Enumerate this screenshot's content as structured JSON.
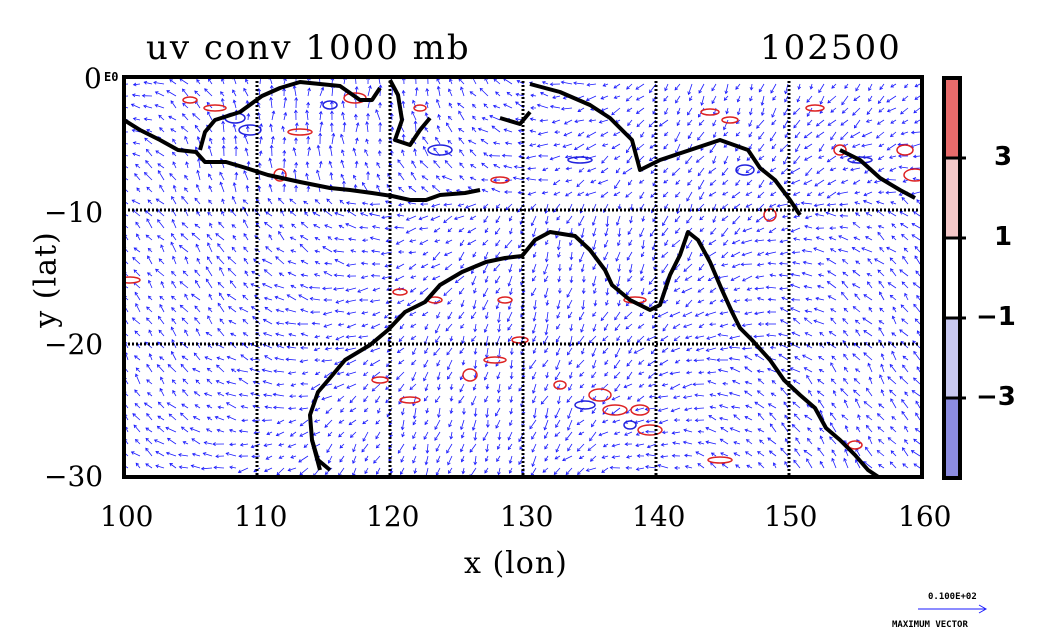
{
  "title": "uv conv 1000 mb",
  "time_label": "102500",
  "x_axis": {
    "label": "x (lon)",
    "ticks": [
      "100",
      "110",
      "120",
      "130",
      "140",
      "150",
      "160"
    ],
    "range": [
      100,
      160
    ]
  },
  "y_axis": {
    "label": "y (lat)",
    "ticks": [
      "0",
      "−10",
      "−20",
      "−30"
    ],
    "range": [
      -30,
      0
    ],
    "tick_prefix_note": "E0"
  },
  "colorbar": {
    "levels": [
      "3",
      "1",
      "−1",
      "−3"
    ],
    "colors": [
      "#e86b6b",
      "#f4c8c8",
      "#ffffff",
      "#c8c8f0",
      "#8c8ce0"
    ]
  },
  "reference_vector": {
    "value": "0.100E+02",
    "label": "MAXIMUM VECTOR"
  },
  "colors": {
    "vector": "#1a1aff",
    "positive_contour": "#dd2222",
    "negative_contour": "#2222dd",
    "coast": "#000000"
  }
}
